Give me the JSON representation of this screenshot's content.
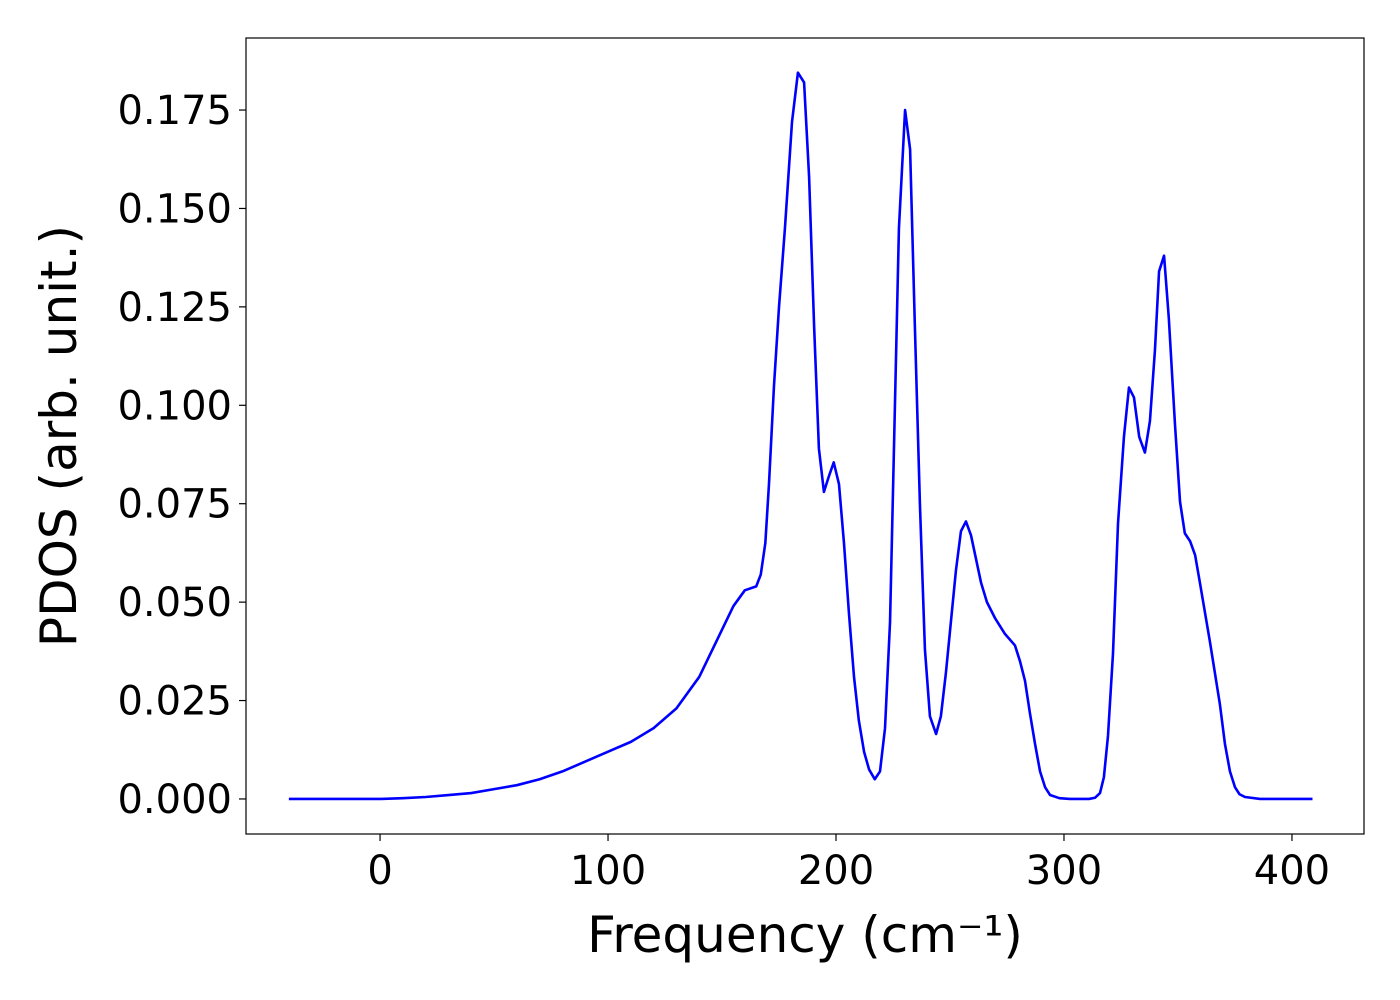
{
  "chart_data": {
    "type": "line",
    "xlabel": "Frequency (cm⁻¹)",
    "ylabel": "PDOS (arb. unit.)",
    "xlim": [
      -58.8,
      431.6
    ],
    "ylim": [
      -0.0089,
      0.1933
    ],
    "xticks": [
      0,
      100,
      200,
      300,
      400
    ],
    "yticks": [
      {
        "value": 0,
        "label": "0.000"
      },
      0.025,
      {
        "value": 0.05,
        "label": "0.050"
      },
      0.075,
      {
        "value": 0.1,
        "label": "0.100"
      },
      0.125,
      {
        "value": 0.15,
        "label": "0.150"
      },
      0.175
    ],
    "grid": false,
    "series": [
      {
        "color": "#0000ff",
        "x": [
          -40,
          0,
          10,
          20,
          30,
          40,
          50,
          60,
          70,
          80,
          90,
          100,
          110,
          120,
          130,
          140,
          150,
          155,
          160,
          165,
          167,
          169,
          170.6,
          172.8,
          175,
          177.6,
          180.7,
          183.3,
          186,
          188.2,
          190.4,
          192.5,
          194.7,
          196.9,
          199,
          201.3,
          203.5,
          205.7,
          207.9,
          210,
          212.3,
          214.5,
          217,
          219.3,
          221.5,
          223.7,
          227.6,
          230.3,
          232.5,
          234.6,
          236.8,
          239,
          241.2,
          243.9,
          246,
          248.2,
          250.4,
          252.6,
          254.8,
          257,
          259.2,
          261.4,
          263.6,
          266.2,
          269.7,
          274,
          278.5,
          280.7,
          282.9,
          285,
          287.3,
          289.5,
          291.7,
          293.9,
          298,
          302.6,
          311,
          313.6,
          315.8,
          317.5,
          319.3,
          321.5,
          323.7,
          326.3,
          328.5,
          330.7,
          333,
          335.5,
          337.7,
          339.9,
          341.7,
          343.9,
          346,
          348.7,
          350.9,
          353,
          355.3,
          357.5,
          359.6,
          364,
          368.4,
          370.6,
          372.8,
          375,
          377,
          379.4,
          386,
          409
        ],
        "values": [
          0,
          0,
          0.0002,
          0.0005,
          0.001,
          0.0015,
          0.0025,
          0.0035,
          0.005,
          0.007,
          0.0095,
          0.012,
          0.0145,
          0.018,
          0.023,
          0.031,
          0.043,
          0.049,
          0.053,
          0.054,
          0.057,
          0.065,
          0.08,
          0.105,
          0.125,
          0.145,
          0.172,
          0.1845,
          0.182,
          0.158,
          0.12,
          0.089,
          0.078,
          0.082,
          0.0855,
          0.08,
          0.065,
          0.047,
          0.031,
          0.02,
          0.012,
          0.0075,
          0.005,
          0.007,
          0.018,
          0.045,
          0.145,
          0.175,
          0.165,
          0.12,
          0.075,
          0.038,
          0.021,
          0.0165,
          0.021,
          0.032,
          0.045,
          0.058,
          0.068,
          0.0705,
          0.067,
          0.061,
          0.055,
          0.05,
          0.046,
          0.042,
          0.039,
          0.035,
          0.03,
          0.022,
          0.014,
          0.007,
          0.003,
          0.001,
          0.0002,
          0,
          0,
          0.0003,
          0.0015,
          0.0055,
          0.016,
          0.037,
          0.07,
          0.092,
          0.1045,
          0.102,
          0.092,
          0.088,
          0.096,
          0.114,
          0.134,
          0.138,
          0.122,
          0.095,
          0.0755,
          0.0675,
          0.0655,
          0.062,
          0.055,
          0.04,
          0.024,
          0.014,
          0.007,
          0.003,
          0.0012,
          0.0005,
          0,
          0
        ]
      }
    ]
  }
}
